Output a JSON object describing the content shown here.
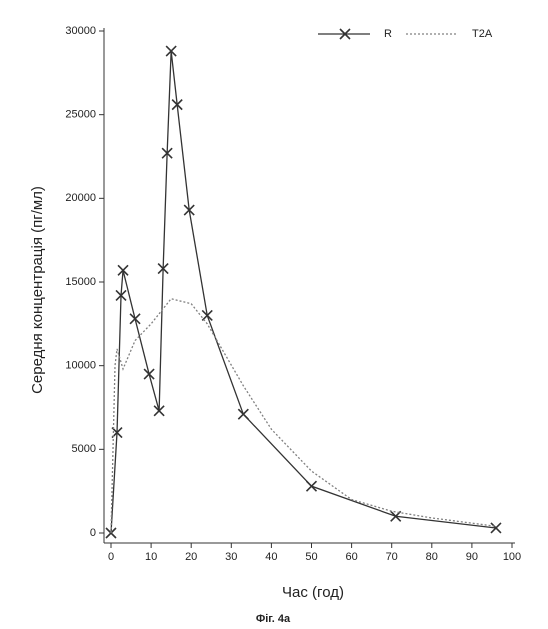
{
  "chart_data": {
    "type": "line",
    "caption": "Фіг. 4а",
    "xlabel": "Час (год)",
    "ylabel": "Середня концентрація (пг/мл)",
    "xlim": [
      0,
      100
    ],
    "xticks": [
      0,
      10,
      20,
      30,
      40,
      50,
      60,
      70,
      80,
      90,
      100
    ],
    "ylim": [
      0,
      30000
    ],
    "yticks": [
      0,
      5000,
      10000,
      15000,
      20000,
      25000,
      30000
    ],
    "legend": "upper right",
    "series": [
      {
        "name": "R",
        "color": "#333333",
        "style": "solid",
        "marker": "x",
        "x": [
          0,
          1.5,
          2.5,
          3,
          6,
          9.5,
          12,
          13,
          14,
          15,
          16.5,
          19.5,
          24,
          33,
          50,
          71,
          96
        ],
        "values": [
          0,
          6000,
          14200,
          15700,
          12800,
          9500,
          7300,
          15800,
          22700,
          28800,
          25600,
          19300,
          13000,
          7100,
          2800,
          1000,
          300
        ]
      },
      {
        "name": "T2A",
        "color": "#808080",
        "style": "dotted",
        "x": [
          0,
          1,
          1.5,
          3,
          6,
          10,
          15,
          20,
          24,
          33,
          40,
          50,
          60,
          70,
          80,
          96
        ],
        "values": [
          0,
          10000,
          11000,
          9800,
          11500,
          12500,
          14000,
          13700,
          12500,
          8800,
          6200,
          3700,
          2000,
          1300,
          900,
          400
        ]
      }
    ]
  }
}
